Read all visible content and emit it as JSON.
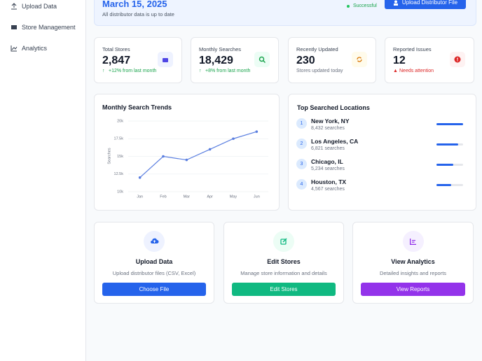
{
  "sidebar": {
    "items": [
      "Upload Data",
      "Store Management",
      "Analytics"
    ]
  },
  "banner": {
    "date": "March 15, 2025",
    "subtitle": "All distributor data is up to date",
    "status": "Successful",
    "button": "Upload Distributor File"
  },
  "stats": [
    {
      "label": "Total Stores",
      "value": "2,847",
      "note": "+12% from last month"
    },
    {
      "label": "Monthly Searches",
      "value": "18,429",
      "note": "+8% from last month"
    },
    {
      "label": "Recently Updated",
      "value": "230",
      "note": "Stores updated today"
    },
    {
      "label": "Reported Issues",
      "value": "12",
      "note": "Needs attention"
    }
  ],
  "chart_data": {
    "type": "line",
    "title": "Monthly Search Trends",
    "y_label": "Searches",
    "categories": [
      "Jan",
      "Feb",
      "Mar",
      "Apr",
      "May",
      "Jun"
    ],
    "values": [
      12000,
      15000,
      14500,
      16000,
      17500,
      18500
    ],
    "color": "#5b7fe0",
    "ylim": [
      10000,
      20000
    ],
    "yticks": [
      {
        "value": 10000,
        "label": "10k"
      },
      {
        "value": 12500,
        "label": "12.5k"
      },
      {
        "value": 15000,
        "label": "15k"
      },
      {
        "value": 17500,
        "label": "17.5k"
      },
      {
        "value": 20000,
        "label": "20k"
      }
    ],
    "grid": true
  },
  "locations": {
    "title": "Top Searched Locations",
    "items": [
      {
        "rank": "1",
        "name": "New York, NY",
        "value": 8432,
        "label": "8,432 searches"
      },
      {
        "rank": "2",
        "name": "Los Angeles, CA",
        "value": 6821,
        "label": "6,821 searches"
      },
      {
        "rank": "3",
        "name": "Chicago, IL",
        "value": 5234,
        "label": "5,234 searches"
      },
      {
        "rank": "4",
        "name": "Houston, TX",
        "value": 4567,
        "label": "4,567 searches"
      }
    ]
  },
  "actions": [
    {
      "title": "Upload Data",
      "description": "Upload distributor files (CSV, Excel)",
      "button": "Choose File"
    },
    {
      "title": "Edit Stores",
      "description": "Manage store information and details",
      "button": "Edit Stores"
    },
    {
      "title": "View Analytics",
      "description": "Detailed insights and reports",
      "button": "View Reports"
    }
  ]
}
